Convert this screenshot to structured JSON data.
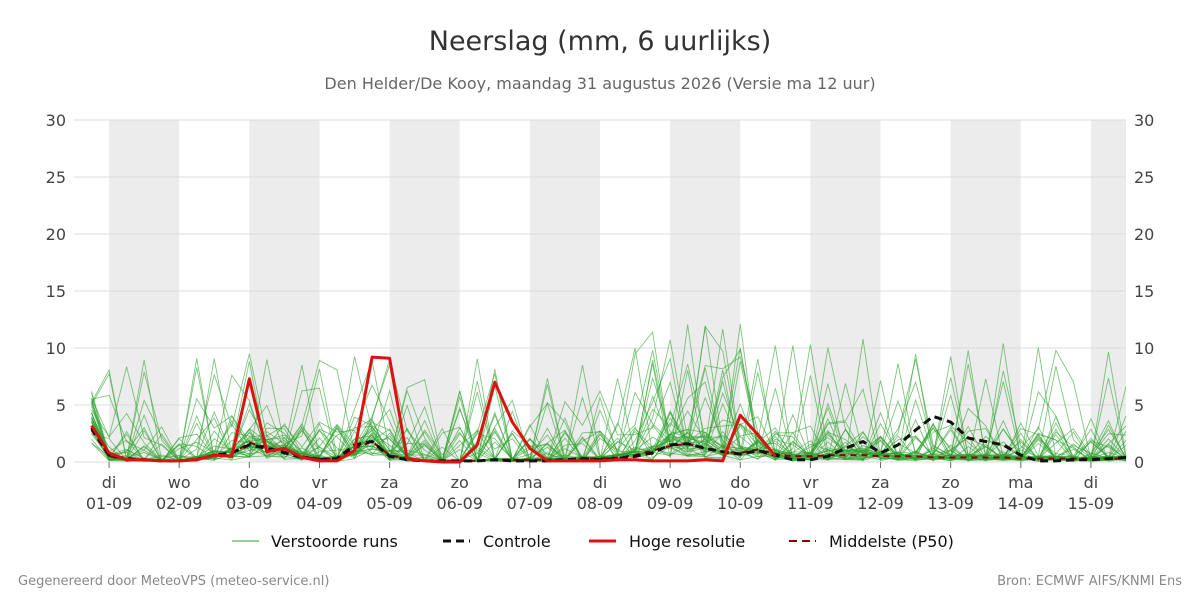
{
  "header": {
    "title": "Neerslag (mm, 6 uurlijks)",
    "subtitle": "Den Helder/De Kooy, maandag 31 augustus 2026 (Versie ma 12 uur)"
  },
  "footer": {
    "left": "Gegenereerd door MeteoVPS (meteo-service.nl)",
    "right": "Bron: ECMWF AIFS/KNMI Ens"
  },
  "legend": {
    "perturbed": "Verstoorde runs",
    "control": "Controle",
    "highres": "Hoge resolutie",
    "median": "Middelste (P50)"
  },
  "colors": {
    "perturbed": "#2ca02c",
    "control": "#111111",
    "highres": "#dd1111",
    "median": "#8b0000",
    "weekend_band": "#ececec",
    "grid": "#dddddd"
  },
  "chart_data": {
    "type": "line",
    "ylim": [
      0,
      30
    ],
    "yticks": [
      0,
      5,
      10,
      15,
      20,
      25,
      30
    ],
    "x_range": [
      -1,
      59
    ],
    "x_step": "6 uur",
    "x_ticks": [
      {
        "day": "di",
        "date": "01-09",
        "step": 1
      },
      {
        "day": "wo",
        "date": "02-09",
        "step": 5
      },
      {
        "day": "do",
        "date": "03-09",
        "step": 9
      },
      {
        "day": "vr",
        "date": "04-09",
        "step": 13
      },
      {
        "day": "za",
        "date": "05-09",
        "step": 17
      },
      {
        "day": "zo",
        "date": "06-09",
        "step": 21
      },
      {
        "day": "ma",
        "date": "07-09",
        "step": 25
      },
      {
        "day": "di",
        "date": "08-09",
        "step": 29
      },
      {
        "day": "wo",
        "date": "09-09",
        "step": 33
      },
      {
        "day": "do",
        "date": "10-09",
        "step": 37
      },
      {
        "day": "vr",
        "date": "11-09",
        "step": 41
      },
      {
        "day": "za",
        "date": "12-09",
        "step": 45
      },
      {
        "day": "zo",
        "date": "13-09",
        "step": 49
      },
      {
        "day": "ma",
        "date": "14-09",
        "step": 53
      },
      {
        "day": "di",
        "date": "15-09",
        "step": 57
      }
    ],
    "shaded_bands": [
      [
        1,
        5
      ],
      [
        9,
        13
      ],
      [
        17,
        21
      ],
      [
        25,
        29
      ],
      [
        33,
        37
      ],
      [
        41,
        45
      ],
      [
        49,
        53
      ],
      [
        57,
        59
      ]
    ],
    "series": [
      {
        "name": "Hoge resolutie",
        "values": [
          3.2,
          0.8,
          0.2,
          0.2,
          0.1,
          0.1,
          0.2,
          0.6,
          0.5,
          7.3,
          0.9,
          1.2,
          0.4,
          0.1,
          0.1,
          1.0,
          9.2,
          9.1,
          0.3,
          0.1,
          0.0,
          0.0,
          1.5,
          7.0,
          3.5,
          1.2,
          0.1,
          0.1,
          0.1,
          0.1,
          0.2,
          0.2,
          0.1,
          0.1,
          0.1,
          0.2,
          0.1,
          4.1,
          2.4,
          0.5
        ]
      },
      {
        "name": "Controle",
        "values": [
          3.0,
          0.6,
          0.3,
          0.2,
          0.1,
          0.1,
          0.2,
          0.6,
          0.8,
          1.5,
          1.2,
          0.8,
          0.4,
          0.2,
          0.3,
          1.5,
          1.8,
          0.5,
          0.2,
          0.1,
          0.1,
          0.1,
          0.1,
          0.2,
          0.1,
          0.1,
          0.1,
          0.2,
          0.3,
          0.2,
          0.3,
          0.5,
          0.8,
          1.5,
          1.6,
          1.2,
          0.9,
          0.7,
          1.0,
          0.6,
          0.2,
          0.2,
          0.5,
          1.2,
          1.8,
          0.8,
          1.5,
          2.8,
          4.0,
          3.5,
          2.1,
          1.8,
          1.5,
          0.6,
          0.1,
          0.1,
          0.2,
          0.2,
          0.3,
          0.4
        ]
      },
      {
        "name": "Middelste (P50)",
        "values": [
          2.8,
          0.5,
          0.2,
          0.2,
          0.1,
          0.1,
          0.3,
          0.6,
          0.7,
          1.7,
          1.3,
          0.9,
          0.5,
          0.3,
          0.3,
          1.2,
          1.8,
          0.6,
          0.3,
          0.1,
          0.1,
          0.1,
          0.1,
          0.2,
          0.2,
          0.2,
          0.2,
          0.2,
          0.3,
          0.3,
          0.4,
          0.6,
          1.0,
          1.4,
          1.6,
          1.2,
          0.9,
          0.8,
          1.1,
          0.7,
          0.5,
          0.5,
          0.6,
          0.6,
          0.6,
          0.5,
          0.5,
          0.5,
          0.4,
          0.4,
          0.4,
          0.4,
          0.4,
          0.3,
          0.3,
          0.3,
          0.3,
          0.3,
          0.3,
          0.3
        ]
      }
    ]
  }
}
